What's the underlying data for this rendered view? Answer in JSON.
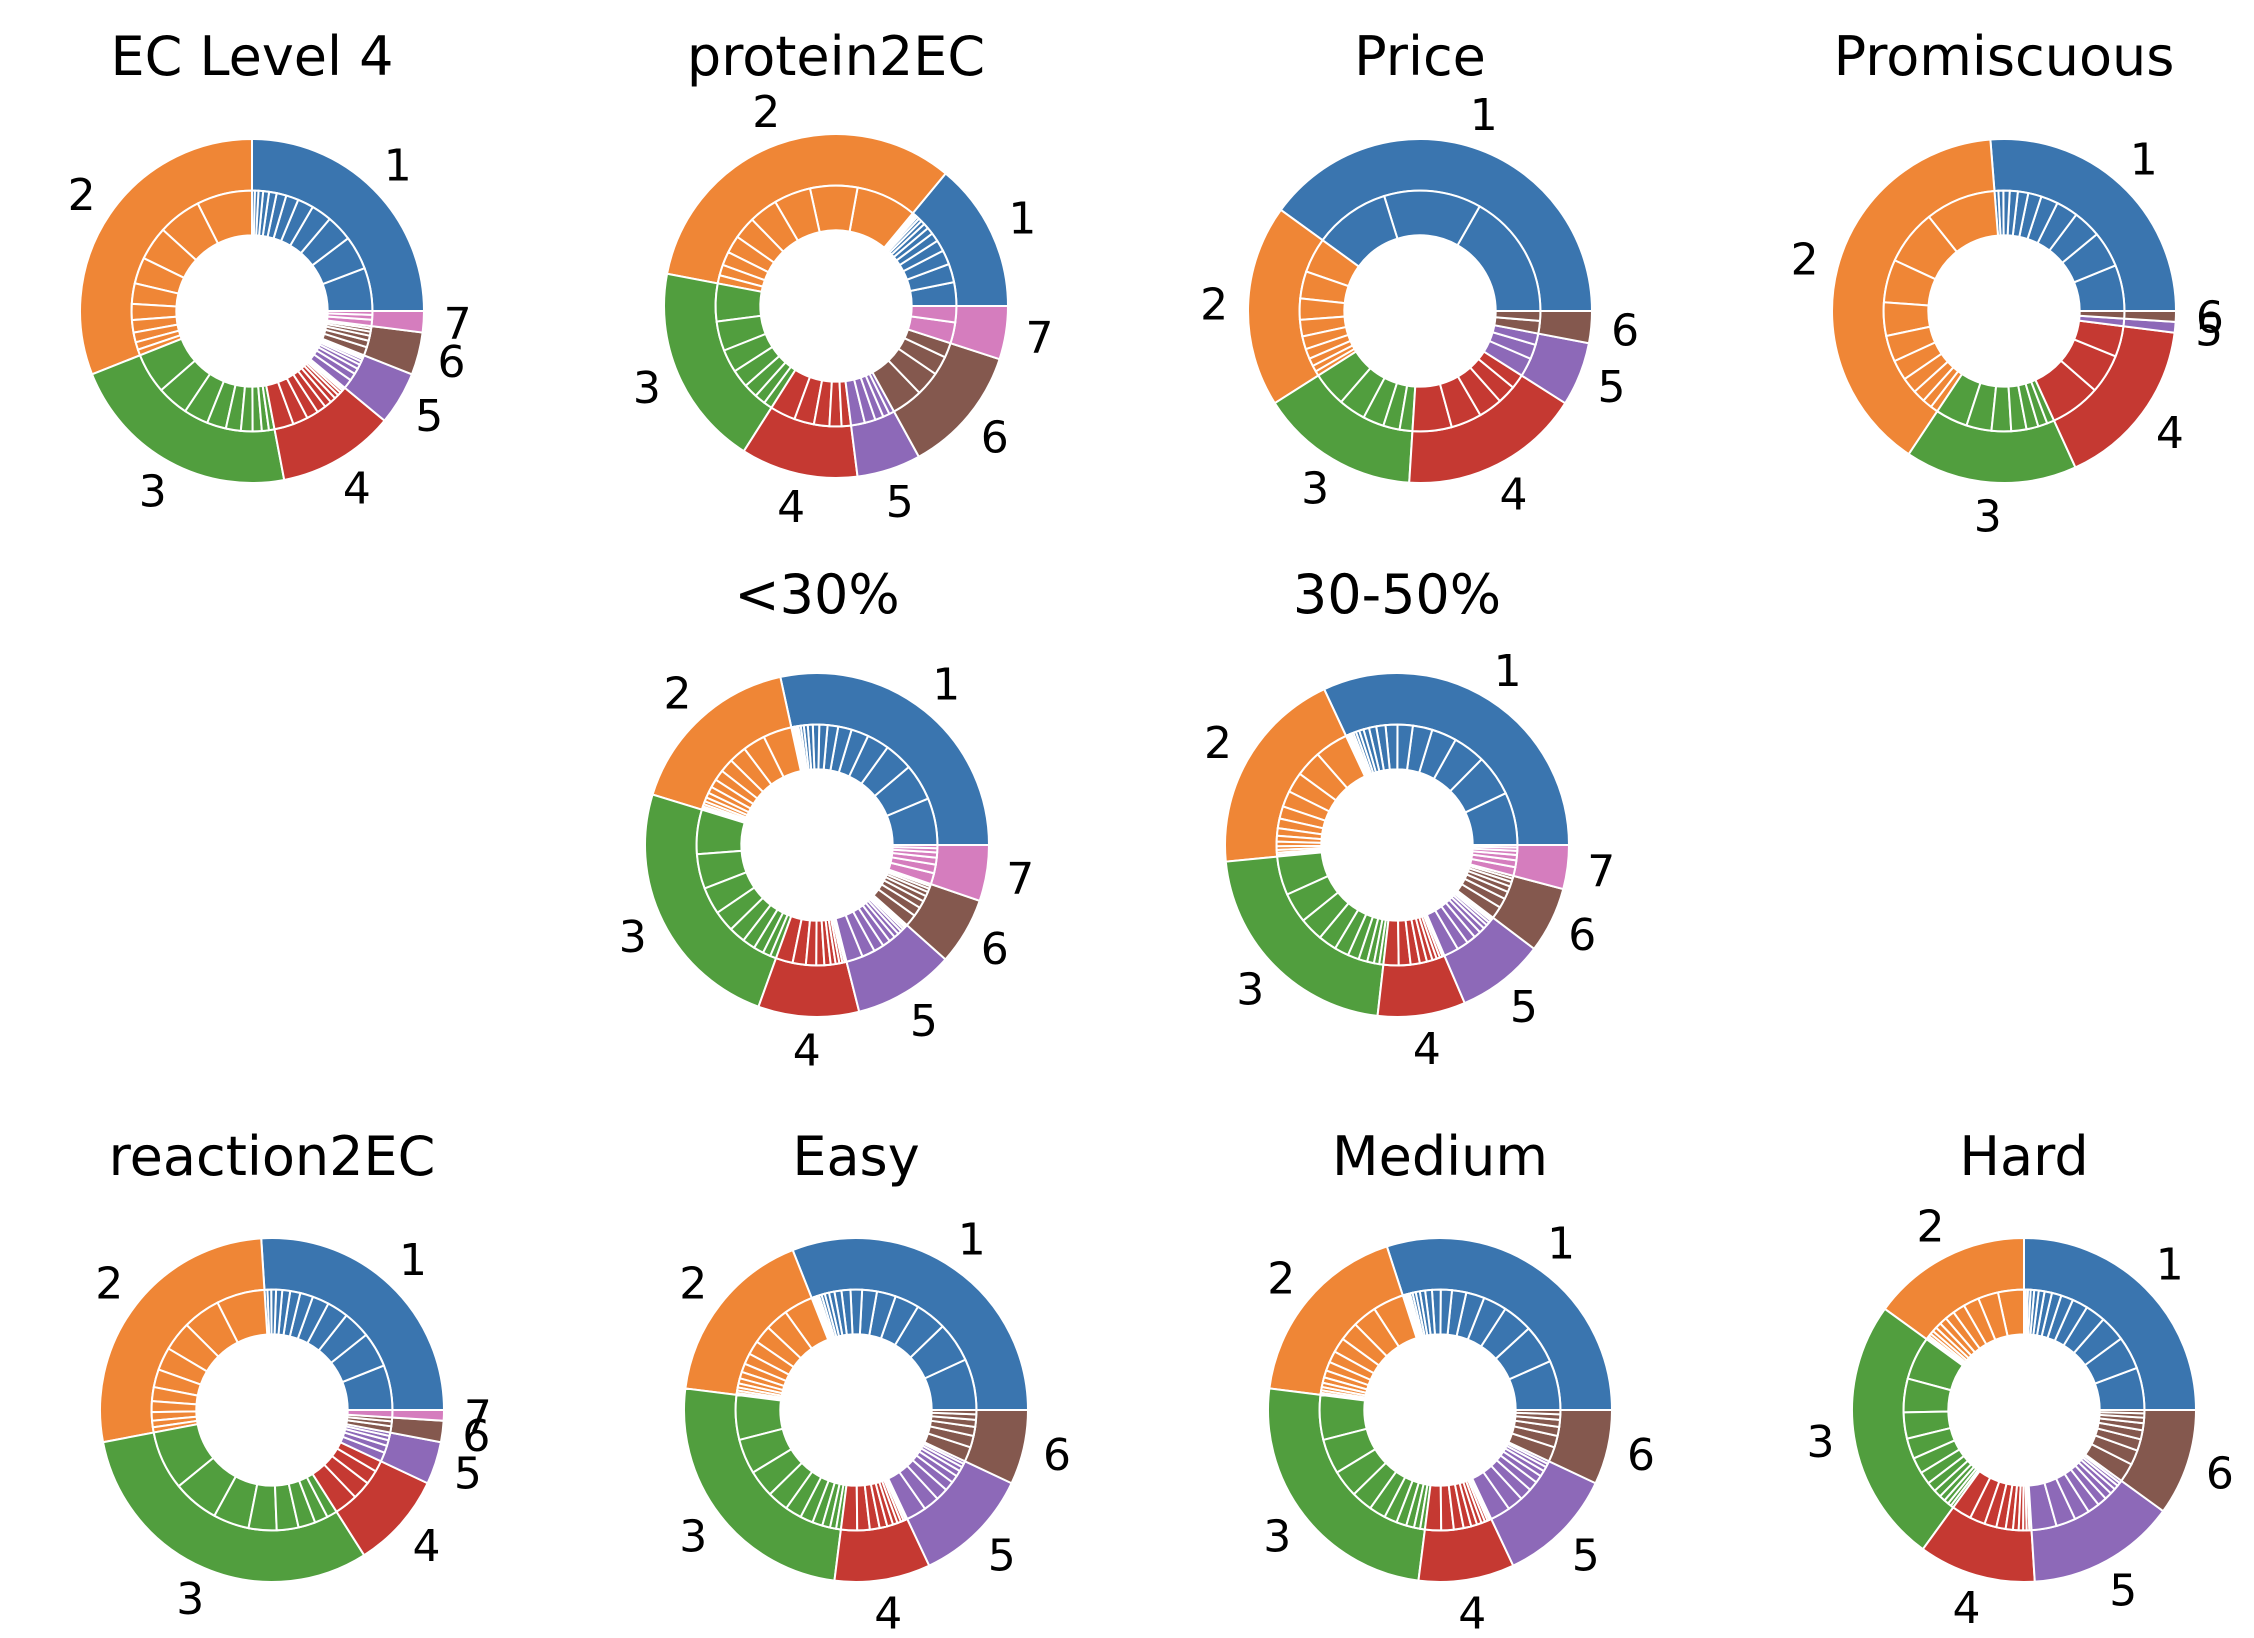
{
  "colors": {
    "1": "#3a75af",
    "2": "#ef8636",
    "3": "#519e3e",
    "4": "#c53932",
    "5": "#8d69b8",
    "6": "#84584e",
    "7": "#d57dbe"
  },
  "chart_data": [
    {
      "type": "pie",
      "title": "EC Level 4",
      "categories": [
        "1",
        "2",
        "3",
        "4",
        "5",
        "6",
        "7"
      ],
      "values": [
        25,
        31,
        22,
        11,
        5,
        4,
        2
      ],
      "inner_counts": [
        12,
        10,
        9,
        11,
        8,
        6,
        3
      ]
    },
    {
      "type": "pie",
      "title": "protein2EC",
      "categories": [
        "1",
        "2",
        "3",
        "4",
        "5",
        "6",
        "7"
      ],
      "values": [
        14,
        33,
        19,
        11,
        6,
        12,
        5
      ],
      "inner_counts": [
        14,
        9,
        7,
        5,
        5,
        4,
        2
      ]
    },
    {
      "type": "pie",
      "title": "Price",
      "categories": [
        "1",
        "2",
        "3",
        "4",
        "5",
        "6"
      ],
      "values": [
        40,
        19,
        15,
        17,
        6,
        3
      ],
      "inner_counts": [
        3,
        9,
        5,
        5,
        3,
        2
      ]
    },
    {
      "type": "pie",
      "title": "Promiscuous",
      "categories": [
        "1",
        "2",
        "3",
        "4",
        "5",
        "6"
      ],
      "values": [
        26,
        39,
        16,
        16,
        1,
        1
      ],
      "inner_counts": [
        11,
        10,
        7,
        3,
        1,
        1
      ]
    },
    {
      "type": "pie",
      "title": "<30%",
      "categories": [
        "1",
        "2",
        "3",
        "4",
        "5",
        "6",
        "7"
      ],
      "values": [
        27,
        16,
        23,
        9,
        9,
        6,
        5
      ],
      "inner_counts": [
        20,
        13,
        9,
        10,
        11,
        8,
        6
      ]
    },
    {
      "type": "pie",
      "title": "30-50%",
      "categories": [
        "1",
        "2",
        "3",
        "4",
        "5",
        "6",
        "7"
      ],
      "values": [
        31,
        19,
        21,
        8,
        8,
        6,
        4
      ],
      "inner_counts": [
        20,
        13,
        10,
        9,
        10,
        7,
        6
      ]
    },
    {
      "type": "pie",
      "title": "reaction2EC",
      "categories": [
        "1",
        "2",
        "3",
        "4",
        "5",
        "6",
        "7"
      ],
      "values": [
        26,
        27,
        31,
        9,
        4,
        2,
        1
      ],
      "inner_counts": [
        12,
        10,
        8,
        4,
        5,
        3,
        1
      ]
    },
    {
      "type": "pie",
      "title": "Easy",
      "categories": [
        "1",
        "2",
        "3",
        "4",
        "5",
        "6"
      ],
      "values": [
        31,
        17,
        25,
        9,
        11,
        7
      ],
      "inner_counts": [
        20,
        12,
        10,
        10,
        9,
        6
      ]
    },
    {
      "type": "pie",
      "title": "Medium",
      "categories": [
        "1",
        "2",
        "3",
        "4",
        "5",
        "6"
      ],
      "values": [
        30,
        18,
        25,
        9,
        11,
        7
      ],
      "inner_counts": [
        20,
        12,
        10,
        10,
        9,
        6
      ]
    },
    {
      "type": "pie",
      "title": "Hard",
      "categories": [
        "1",
        "2",
        "3",
        "4",
        "5",
        "6"
      ],
      "values": [
        25,
        15,
        25,
        11,
        14,
        10
      ],
      "inner_counts": [
        14,
        12,
        12,
        10,
        10,
        8
      ]
    }
  ]
}
